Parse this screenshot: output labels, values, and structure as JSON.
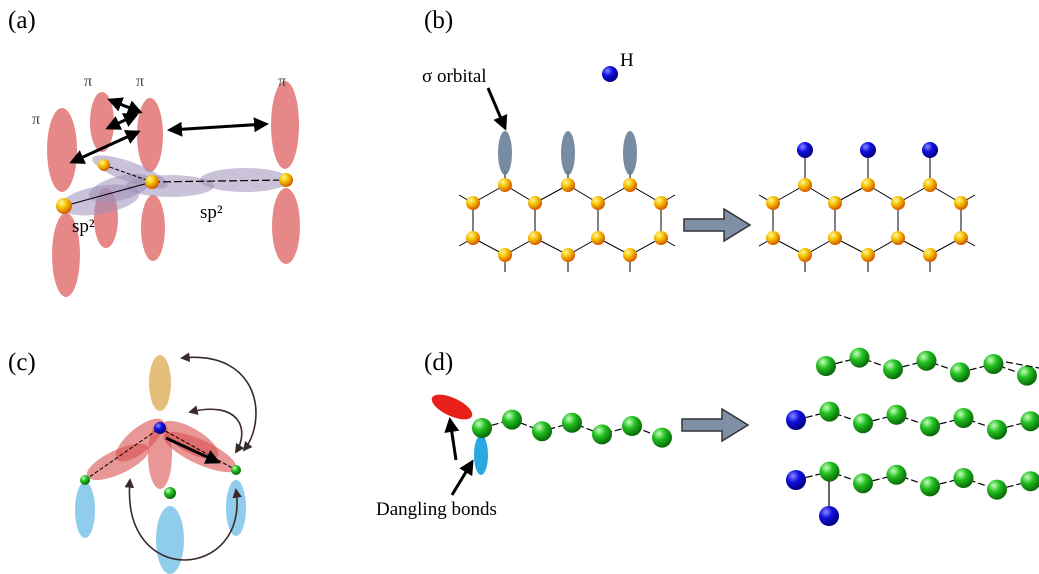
{
  "panels": [
    {
      "label": "(a)",
      "annotations": [
        "π",
        "π",
        "π",
        "π",
        "sp²",
        "sp²"
      ]
    },
    {
      "label": "(b)",
      "annotations": [
        "σ orbital",
        "H"
      ]
    },
    {
      "label": "(c)"
    },
    {
      "label": "(d)",
      "annotations": [
        "Dangling bonds"
      ]
    }
  ]
}
